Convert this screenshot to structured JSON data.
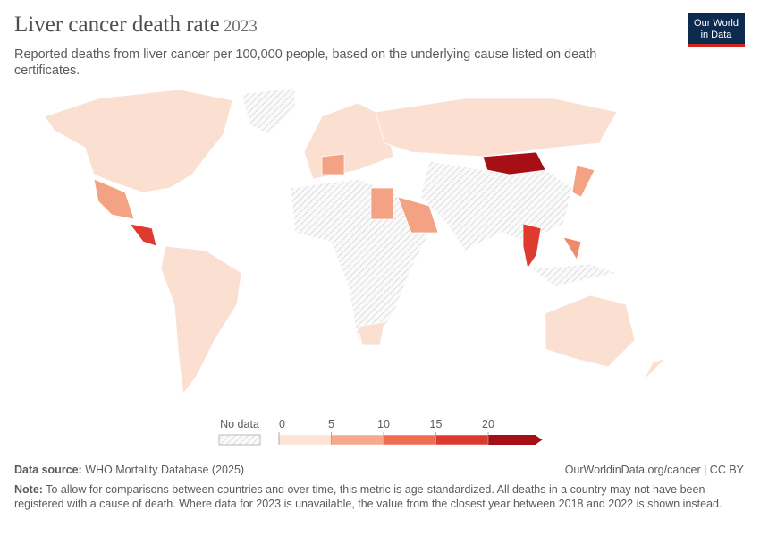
{
  "header": {
    "title": "Liver cancer death rate",
    "year": "2023",
    "subtitle": "Reported deaths from liver cancer per 100,000 people, based on the underlying cause listed on death certificates.",
    "logo": [
      "Our World",
      "in Data"
    ]
  },
  "legend": {
    "no_data": "No data",
    "ticks": [
      0,
      5,
      10,
      15,
      20
    ],
    "colors": [
      "#fde3d4",
      "#f6a98c",
      "#ef6d50",
      "#dc3a2e",
      "#a50f15"
    ]
  },
  "footer": {
    "source_label": "Data source:",
    "source": "WHO Mortality Database (2025)",
    "url": "OurWorldinData.org/cancer | CC BY",
    "note_label": "Note:",
    "note": "To allow for comparisons between countries and over time, this metric is age-standardized. All deaths in a country may not have been registered with a cause of death. Where data for 2023 is unavailable, the value from the closest year between 2018 and 2022 is shown instead."
  }
}
